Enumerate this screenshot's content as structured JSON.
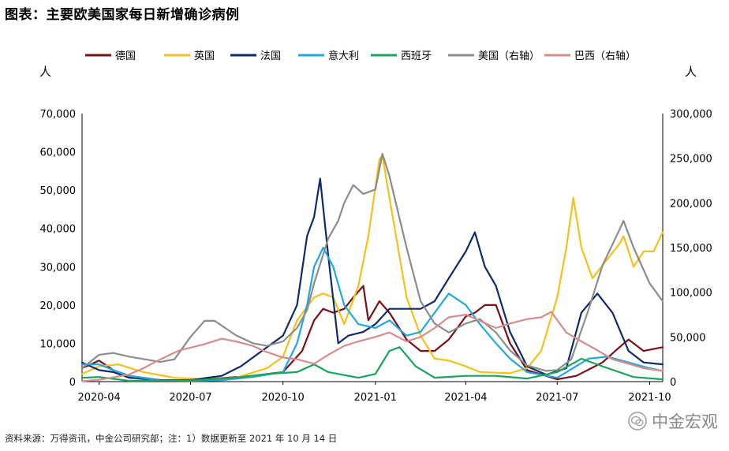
{
  "title": "图表：主要欧美国家每日新增确诊病例",
  "source": "资料来源：万得资讯，中金公司研究部；注：1）数据更新至 2021 年 10 月 14 日",
  "watermark": "中金宏观",
  "chart_data": {
    "type": "line",
    "left_unit": "人",
    "right_unit": "人",
    "y_left": {
      "min": 0,
      "max": 70000,
      "ticks": [
        "0",
        "10,000",
        "20,000",
        "30,000",
        "40,000",
        "50,000",
        "60,000",
        "70,000"
      ]
    },
    "y_right": {
      "min": 0,
      "max": 300000,
      "ticks": [
        "0",
        "50,000",
        "100,000",
        "150,000",
        "200,000",
        "250,000",
        "300,000"
      ]
    },
    "x_axis": {
      "start": "2020-03-15",
      "end": "2021-10-14",
      "ticks": [
        {
          "label": "2020-04",
          "date": "2020-04-01"
        },
        {
          "label": "2020-07",
          "date": "2020-07-01"
        },
        {
          "label": "2020-10",
          "date": "2020-10-01"
        },
        {
          "label": "2021-01",
          "date": "2021-01-01"
        },
        {
          "label": "2021-04",
          "date": "2021-04-01"
        },
        {
          "label": "2021-07",
          "date": "2021-07-01"
        },
        {
          "label": "2021-10",
          "date": "2021-10-01"
        }
      ]
    },
    "series": [
      {
        "name": "德国",
        "color": "#7b0f16",
        "axis": "left",
        "points": [
          [
            "2020-03-15",
            3500
          ],
          [
            "2020-04-01",
            5500
          ],
          [
            "2020-04-15",
            3000
          ],
          [
            "2020-05-01",
            1500
          ],
          [
            "2020-06-01",
            400
          ],
          [
            "2020-07-01",
            400
          ],
          [
            "2020-08-01",
            900
          ],
          [
            "2020-09-01",
            1500
          ],
          [
            "2020-10-01",
            2500
          ],
          [
            "2020-10-20",
            8000
          ],
          [
            "2020-11-01",
            16000
          ],
          [
            "2020-11-10",
            19000
          ],
          [
            "2020-11-20",
            18000
          ],
          [
            "2020-12-01",
            19000
          ],
          [
            "2020-12-10",
            22000
          ],
          [
            "2020-12-20",
            25000
          ],
          [
            "2020-12-25",
            16000
          ],
          [
            "2021-01-05",
            21000
          ],
          [
            "2021-01-15",
            18000
          ],
          [
            "2021-02-01",
            11000
          ],
          [
            "2021-02-15",
            8000
          ],
          [
            "2021-03-01",
            8000
          ],
          [
            "2021-03-15",
            11000
          ],
          [
            "2021-04-01",
            17000
          ],
          [
            "2021-04-10",
            18000
          ],
          [
            "2021-04-20",
            20000
          ],
          [
            "2021-05-01",
            20000
          ],
          [
            "2021-05-15",
            10000
          ],
          [
            "2021-06-01",
            3000
          ],
          [
            "2021-07-01",
            600
          ],
          [
            "2021-07-20",
            1500
          ],
          [
            "2021-08-15",
            5000
          ],
          [
            "2021-09-01",
            9000
          ],
          [
            "2021-09-10",
            11000
          ],
          [
            "2021-09-25",
            8000
          ],
          [
            "2021-10-14",
            9000
          ]
        ]
      },
      {
        "name": "英国",
        "color": "#f2c21a",
        "axis": "left",
        "points": [
          [
            "2020-03-15",
            2000
          ],
          [
            "2020-04-01",
            4000
          ],
          [
            "2020-04-20",
            4500
          ],
          [
            "2020-05-15",
            2500
          ],
          [
            "2020-06-15",
            1000
          ],
          [
            "2020-07-15",
            600
          ],
          [
            "2020-08-15",
            1000
          ],
          [
            "2020-09-15",
            3500
          ],
          [
            "2020-10-01",
            6500
          ],
          [
            "2020-10-15",
            16000
          ],
          [
            "2020-11-01",
            22000
          ],
          [
            "2020-11-10",
            23000
          ],
          [
            "2020-11-20",
            22000
          ],
          [
            "2020-12-01",
            15000
          ],
          [
            "2020-12-15",
            25000
          ],
          [
            "2020-12-25",
            38000
          ],
          [
            "2021-01-05",
            58000
          ],
          [
            "2021-01-08",
            59000
          ],
          [
            "2021-01-15",
            48000
          ],
          [
            "2021-02-01",
            22000
          ],
          [
            "2021-02-15",
            12000
          ],
          [
            "2021-03-01",
            6000
          ],
          [
            "2021-03-15",
            5500
          ],
          [
            "2021-04-01",
            4000
          ],
          [
            "2021-04-15",
            2500
          ],
          [
            "2021-05-15",
            2200
          ],
          [
            "2021-06-01",
            3500
          ],
          [
            "2021-06-15",
            8000
          ],
          [
            "2021-07-01",
            22000
          ],
          [
            "2021-07-10",
            35000
          ],
          [
            "2021-07-17",
            48000
          ],
          [
            "2021-07-25",
            35000
          ],
          [
            "2021-08-05",
            27000
          ],
          [
            "2021-08-20",
            32000
          ],
          [
            "2021-09-01",
            36000
          ],
          [
            "2021-09-05",
            38000
          ],
          [
            "2021-09-15",
            30000
          ],
          [
            "2021-09-25",
            34000
          ],
          [
            "2021-10-05",
            34000
          ],
          [
            "2021-10-14",
            39000
          ]
        ]
      },
      {
        "name": "法国",
        "color": "#0f2a6b",
        "axis": "left",
        "points": [
          [
            "2020-03-15",
            5000
          ],
          [
            "2020-04-01",
            3000
          ],
          [
            "2020-04-15",
            2500
          ],
          [
            "2020-05-01",
            1000
          ],
          [
            "2020-06-01",
            400
          ],
          [
            "2020-07-01",
            400
          ],
          [
            "2020-08-01",
            1500
          ],
          [
            "2020-08-20",
            4000
          ],
          [
            "2020-09-10",
            8000
          ],
          [
            "2020-10-01",
            12000
          ],
          [
            "2020-10-15",
            20000
          ],
          [
            "2020-10-25",
            38000
          ],
          [
            "2020-11-01",
            43000
          ],
          [
            "2020-11-07",
            53000
          ],
          [
            "2020-11-15",
            33000
          ],
          [
            "2020-11-25",
            10000
          ],
          [
            "2020-12-05",
            12000
          ],
          [
            "2020-12-20",
            13000
          ],
          [
            "2021-01-01",
            15000
          ],
          [
            "2021-01-15",
            19000
          ],
          [
            "2021-02-01",
            19000
          ],
          [
            "2021-02-15",
            19000
          ],
          [
            "2021-03-01",
            21000
          ],
          [
            "2021-03-15",
            27000
          ],
          [
            "2021-04-01",
            34000
          ],
          [
            "2021-04-10",
            39000
          ],
          [
            "2021-04-20",
            30000
          ],
          [
            "2021-05-01",
            25000
          ],
          [
            "2021-05-15",
            13000
          ],
          [
            "2021-06-01",
            4000
          ],
          [
            "2021-06-20",
            1800
          ],
          [
            "2021-07-10",
            3500
          ],
          [
            "2021-07-25",
            18000
          ],
          [
            "2021-08-10",
            23000
          ],
          [
            "2021-08-25",
            18000
          ],
          [
            "2021-09-10",
            8000
          ],
          [
            "2021-09-25",
            5000
          ],
          [
            "2021-10-14",
            4500
          ]
        ]
      },
      {
        "name": "意大利",
        "color": "#20a8e0",
        "axis": "left",
        "points": [
          [
            "2020-03-15",
            4500
          ],
          [
            "2020-04-01",
            4500
          ],
          [
            "2020-04-15",
            3000
          ],
          [
            "2020-05-01",
            1500
          ],
          [
            "2020-06-01",
            300
          ],
          [
            "2020-07-01",
            200
          ],
          [
            "2020-08-01",
            400
          ],
          [
            "2020-09-01",
            1200
          ],
          [
            "2020-10-01",
            2500
          ],
          [
            "2020-10-15",
            10000
          ],
          [
            "2020-10-25",
            20000
          ],
          [
            "2020-11-01",
            30000
          ],
          [
            "2020-11-10",
            35000
          ],
          [
            "2020-11-20",
            30000
          ],
          [
            "2020-12-01",
            20000
          ],
          [
            "2020-12-15",
            15000
          ],
          [
            "2021-01-01",
            14000
          ],
          [
            "2021-01-15",
            16000
          ],
          [
            "2021-02-01",
            12000
          ],
          [
            "2021-02-15",
            13000
          ],
          [
            "2021-03-01",
            18000
          ],
          [
            "2021-03-15",
            23000
          ],
          [
            "2021-04-01",
            20000
          ],
          [
            "2021-04-15",
            15000
          ],
          [
            "2021-05-01",
            10000
          ],
          [
            "2021-05-15",
            6000
          ],
          [
            "2021-06-01",
            2500
          ],
          [
            "2021-07-01",
            1000
          ],
          [
            "2021-08-01",
            6000
          ],
          [
            "2021-08-20",
            6500
          ],
          [
            "2021-09-10",
            5000
          ],
          [
            "2021-10-01",
            3500
          ],
          [
            "2021-10-14",
            2800
          ]
        ]
      },
      {
        "name": "西班牙",
        "color": "#18a45a",
        "axis": "left",
        "points": [
          [
            "2020-03-15",
            1000
          ],
          [
            "2020-04-01",
            1200
          ],
          [
            "2020-05-01",
            200
          ],
          [
            "2020-07-01",
            300
          ],
          [
            "2020-08-15",
            1000
          ],
          [
            "2020-09-15",
            2000
          ],
          [
            "2020-10-15",
            2500
          ],
          [
            "2020-11-01",
            4500
          ],
          [
            "2020-11-15",
            2500
          ],
          [
            "2020-12-15",
            1000
          ],
          [
            "2021-01-01",
            2000
          ],
          [
            "2021-01-15",
            8000
          ],
          [
            "2021-01-25",
            9000
          ],
          [
            "2021-02-10",
            4000
          ],
          [
            "2021-03-01",
            1000
          ],
          [
            "2021-04-01",
            1500
          ],
          [
            "2021-05-01",
            1500
          ],
          [
            "2021-06-01",
            800
          ],
          [
            "2021-07-01",
            2500
          ],
          [
            "2021-07-25",
            6000
          ],
          [
            "2021-08-15",
            4000
          ],
          [
            "2021-09-15",
            1200
          ],
          [
            "2021-10-14",
            600
          ]
        ]
      },
      {
        "name": "美国（右轴）",
        "color": "#8c8c8c",
        "axis": "right",
        "points": [
          [
            "2020-03-15",
            15000
          ],
          [
            "2020-04-01",
            30000
          ],
          [
            "2020-04-15",
            32000
          ],
          [
            "2020-05-01",
            28000
          ],
          [
            "2020-06-01",
            22000
          ],
          [
            "2020-06-15",
            25000
          ],
          [
            "2020-07-01",
            50000
          ],
          [
            "2020-07-15",
            68000
          ],
          [
            "2020-07-25",
            68000
          ],
          [
            "2020-08-15",
            52000
          ],
          [
            "2020-09-01",
            43000
          ],
          [
            "2020-09-15",
            40000
          ],
          [
            "2020-10-01",
            45000
          ],
          [
            "2020-10-15",
            60000
          ],
          [
            "2020-10-25",
            80000
          ],
          [
            "2020-11-01",
            110000
          ],
          [
            "2020-11-15",
            160000
          ],
          [
            "2020-11-25",
            180000
          ],
          [
            "2020-12-01",
            200000
          ],
          [
            "2020-12-10",
            220000
          ],
          [
            "2020-12-20",
            210000
          ],
          [
            "2021-01-01",
            215000
          ],
          [
            "2021-01-08",
            255000
          ],
          [
            "2021-01-15",
            230000
          ],
          [
            "2021-02-01",
            150000
          ],
          [
            "2021-02-15",
            90000
          ],
          [
            "2021-03-01",
            65000
          ],
          [
            "2021-03-15",
            55000
          ],
          [
            "2021-04-01",
            65000
          ],
          [
            "2021-04-15",
            70000
          ],
          [
            "2021-05-01",
            55000
          ],
          [
            "2021-05-15",
            35000
          ],
          [
            "2021-06-01",
            18000
          ],
          [
            "2021-06-20",
            12000
          ],
          [
            "2021-07-01",
            13000
          ],
          [
            "2021-07-15",
            25000
          ],
          [
            "2021-08-01",
            80000
          ],
          [
            "2021-08-15",
            130000
          ],
          [
            "2021-09-01",
            170000
          ],
          [
            "2021-09-05",
            180000
          ],
          [
            "2021-09-15",
            150000
          ],
          [
            "2021-10-01",
            110000
          ],
          [
            "2021-10-14",
            90000
          ]
        ]
      },
      {
        "name": "巴西（右轴）",
        "color": "#d98b8b",
        "axis": "right",
        "points": [
          [
            "2020-03-15",
            500
          ],
          [
            "2020-04-01",
            2000
          ],
          [
            "2020-05-01",
            8000
          ],
          [
            "2020-05-15",
            15000
          ],
          [
            "2020-06-01",
            25000
          ],
          [
            "2020-06-20",
            35000
          ],
          [
            "2020-07-01",
            38000
          ],
          [
            "2020-07-15",
            42000
          ],
          [
            "2020-08-01",
            48000
          ],
          [
            "2020-08-15",
            45000
          ],
          [
            "2020-09-01",
            40000
          ],
          [
            "2020-09-15",
            33000
          ],
          [
            "2020-10-01",
            27000
          ],
          [
            "2020-10-15",
            25000
          ],
          [
            "2020-11-01",
            20000
          ],
          [
            "2020-11-15",
            30000
          ],
          [
            "2020-12-01",
            40000
          ],
          [
            "2020-12-15",
            45000
          ],
          [
            "2021-01-01",
            50000
          ],
          [
            "2021-01-15",
            55000
          ],
          [
            "2021-02-01",
            45000
          ],
          [
            "2021-02-15",
            50000
          ],
          [
            "2021-03-01",
            60000
          ],
          [
            "2021-03-15",
            72000
          ],
          [
            "2021-04-01",
            75000
          ],
          [
            "2021-04-15",
            68000
          ],
          [
            "2021-05-01",
            60000
          ],
          [
            "2021-05-15",
            65000
          ],
          [
            "2021-06-01",
            70000
          ],
          [
            "2021-06-15",
            72000
          ],
          [
            "2021-06-25",
            78000
          ],
          [
            "2021-07-10",
            55000
          ],
          [
            "2021-07-25",
            45000
          ],
          [
            "2021-08-10",
            35000
          ],
          [
            "2021-08-25",
            25000
          ],
          [
            "2021-09-10",
            20000
          ],
          [
            "2021-09-25",
            15000
          ],
          [
            "2021-10-14",
            12000
          ]
        ]
      }
    ]
  }
}
